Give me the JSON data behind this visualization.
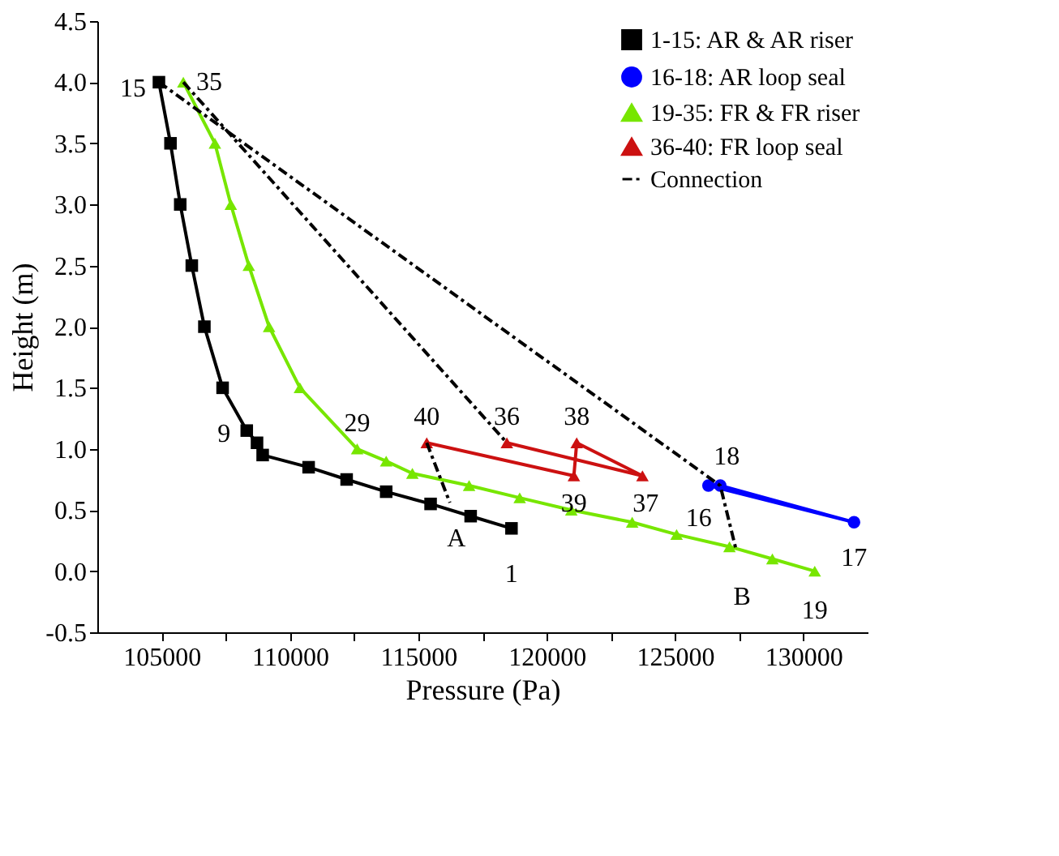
{
  "chart_data": {
    "type": "line",
    "xlabel": "Pressure (Pa)",
    "ylabel": "Height (m)",
    "xlim": [
      102500,
      132500
    ],
    "ylim": [
      -0.5,
      4.5
    ],
    "xticks": [
      105000,
      {
        "value": 107500,
        "label": null
      },
      110000,
      {
        "value": 112500,
        "label": null
      },
      115000,
      {
        "value": 117500,
        "label": null
      },
      120000,
      {
        "value": 122500,
        "label": null
      },
      125000,
      {
        "value": 127500,
        "label": null
      },
      130000
    ],
    "yticks": [
      -0.5,
      {
        "value": 0,
        "label": "0.0"
      },
      0.5,
      {
        "value": 1,
        "label": "1.0"
      },
      1.5,
      {
        "value": 2,
        "label": "2.0"
      },
      2.5,
      {
        "value": 3,
        "label": "3.0"
      },
      3.5,
      {
        "value": 4,
        "label": "4.0"
      },
      4.5
    ],
    "grid": false,
    "legend": "top right",
    "series": [
      {
        "name": "1-15: AR & AR riser",
        "color": "#000000",
        "marker": "square",
        "line_style": "solid",
        "x": [
          118630,
          117040,
          115480,
          113750,
          112210,
          110730,
          108940,
          108720,
          108320,
          107380,
          106670,
          106180,
          105730,
          105350,
          104900
        ],
        "values": [
          0.35,
          0.45,
          0.55,
          0.65,
          0.75,
          0.85,
          0.95,
          1.05,
          1.15,
          1.5,
          2.0,
          2.5,
          3.0,
          3.5,
          4.0
        ]
      },
      {
        "name": "16-18: AR loop seal",
        "color": "#0000ff",
        "marker": "circle",
        "line_style": "solid",
        "x": [
          126300,
          131970,
          126760
        ],
        "values": [
          0.7,
          0.4,
          0.7
        ]
      },
      {
        "name": "19-35: FR & FR riser",
        "color": "#77e600",
        "marker": "triangle",
        "line_style": "solid",
        "x": [
          130440,
          128790,
          127120,
          125060,
          123330,
          120960,
          118950,
          116980,
          114770,
          113750,
          112620,
          110390,
          109190,
          108400,
          107700,
          107080,
          105850
        ],
        "values": [
          0.0,
          0.1,
          0.2,
          0.3,
          0.4,
          0.5,
          0.6,
          0.7,
          0.8,
          0.9,
          1.0,
          1.5,
          2.0,
          2.5,
          3.0,
          3.5,
          4.0
        ]
      },
      {
        "name": "36-40: FR loop seal",
        "color": "#cc1111",
        "marker": "triangle",
        "line_style": "solid",
        "x": [
          118450,
          123730,
          121170,
          121060,
          115330
        ],
        "values": [
          1.05,
          0.78,
          1.05,
          0.78,
          1.05
        ]
      },
      {
        "name": "Connection",
        "color": "#000000",
        "marker": "none",
        "line_style": "dashed",
        "x": [
          104900,
          126760,
          127360,
          null,
          105850,
          118450,
          null,
          115330,
          116230
        ],
        "values": [
          4.0,
          0.7,
          0.19,
          null,
          4.0,
          1.05,
          null,
          1.05,
          0.56
        ]
      }
    ],
    "annotations": [
      {
        "text": "15",
        "x": 104900,
        "y": 4.0
      },
      {
        "text": "35",
        "x": 105850,
        "y": 4.0
      },
      {
        "text": "9",
        "x": 108320,
        "y": 1.15
      },
      {
        "text": "29",
        "x": 112620,
        "y": 1.0
      },
      {
        "text": "40",
        "x": 115330,
        "y": 1.05
      },
      {
        "text": "36",
        "x": 118450,
        "y": 1.05
      },
      {
        "text": "38",
        "x": 121170,
        "y": 1.05
      },
      {
        "text": "39",
        "x": 121060,
        "y": 0.78
      },
      {
        "text": "37",
        "x": 123730,
        "y": 0.78
      },
      {
        "text": "18",
        "x": 126760,
        "y": 0.7
      },
      {
        "text": "16",
        "x": 126300,
        "y": 0.7
      },
      {
        "text": "17",
        "x": 131970,
        "y": 0.4
      },
      {
        "text": "19",
        "x": 130440,
        "y": 0.0
      },
      {
        "text": "1",
        "x": 118630,
        "y": 0.35
      },
      {
        "text": "A",
        "x": 116230,
        "y": 0.56
      },
      {
        "text": "B",
        "x": 127360,
        "y": 0.19
      }
    ]
  }
}
